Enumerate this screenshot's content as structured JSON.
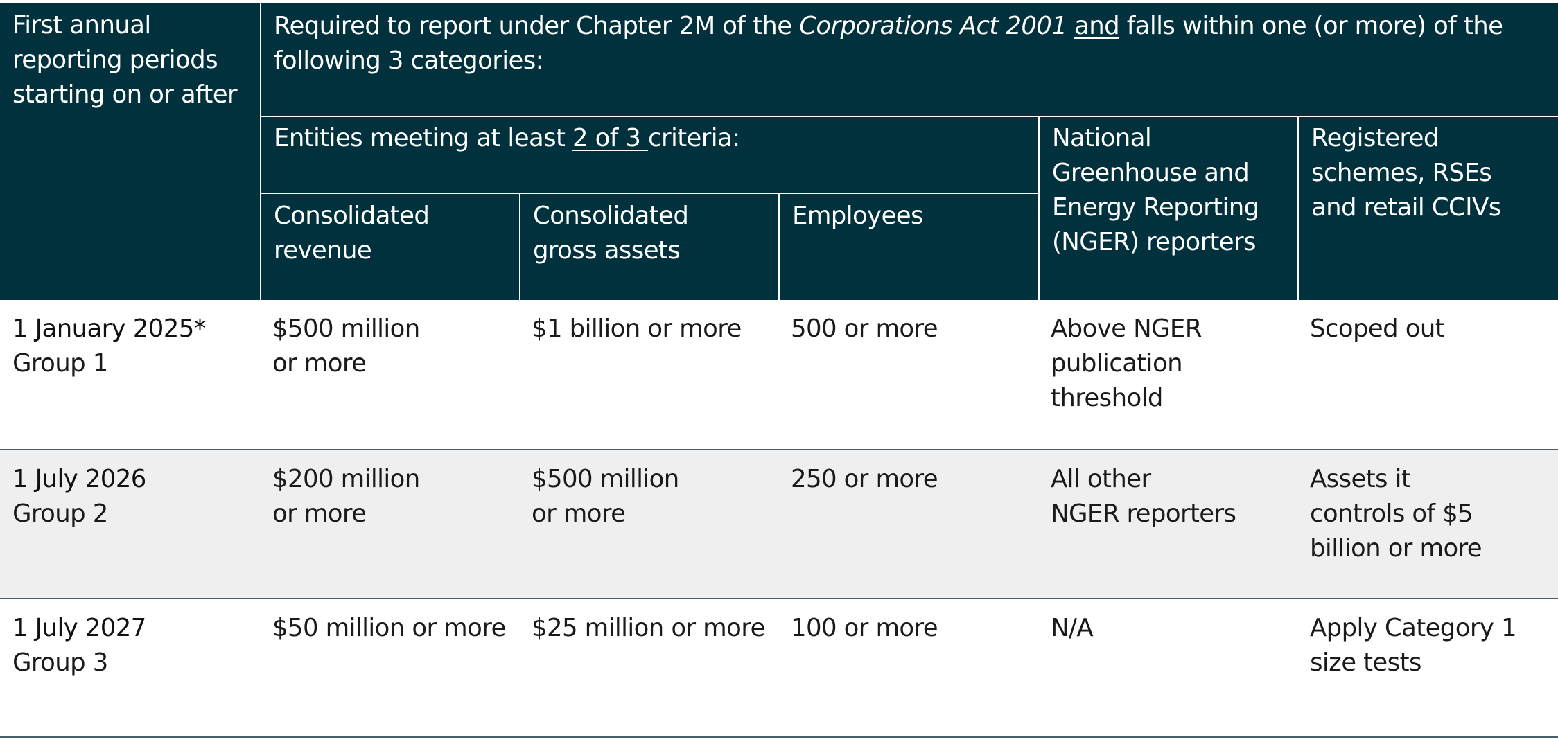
{
  "header": {
    "col1": [
      "First annual",
      "reporting periods",
      "starting on or after"
    ],
    "main": {
      "prefix": "Required to report under Chapter 2M of the ",
      "act": "Corporations Act 2001",
      "and": "and",
      "suffix_line1": " falls within one (or more) of the",
      "line2": "following 3 categories:"
    },
    "criteria": {
      "prefix": "Entities meeting at least ",
      "emph": "2 of 3 ",
      "suffix": "criteria:"
    },
    "sub": {
      "revenue": [
        "Consolidated",
        "revenue"
      ],
      "assets": [
        "Consolidated",
        "gross assets"
      ],
      "employees": [
        "Employees"
      ]
    },
    "nger": [
      "National",
      "Greenhouse and",
      "Energy Reporting",
      "(NGER) reporters"
    ],
    "registered": [
      "Registered",
      "schemes, RSEs",
      "and retail CCIVs"
    ]
  },
  "rows": [
    {
      "date": "1 January 2025*",
      "group": "Group 1",
      "revenue": [
        "$500 million",
        "or more"
      ],
      "assets": [
        "$1 billion or more"
      ],
      "employees": [
        "500 or more"
      ],
      "nger": [
        "Above NGER",
        "publication",
        "threshold"
      ],
      "registered": [
        "Scoped out"
      ]
    },
    {
      "date": "1 July 2026",
      "group": "Group 2",
      "revenue": [
        "$200 million",
        "or more"
      ],
      "assets": [
        "$500 million",
        "or more"
      ],
      "employees": [
        "250 or more"
      ],
      "nger": [
        "All other",
        "NGER reporters"
      ],
      "registered": [
        "Assets it",
        "controls of $5",
        "billion or more"
      ]
    },
    {
      "date": "1 July 2027",
      "group": "Group 3",
      "revenue": [
        "$50 million or more"
      ],
      "assets": [
        "$25 million or more"
      ],
      "employees": [
        "100 or more"
      ],
      "nger": [
        "N/A"
      ],
      "registered": [
        "Apply Category 1",
        "size tests"
      ]
    }
  ],
  "colors": {
    "header_bg": "#00313c",
    "header_text": "#ffffff",
    "alt_row_bg": "#efefef",
    "row_divider": "#49606b"
  }
}
